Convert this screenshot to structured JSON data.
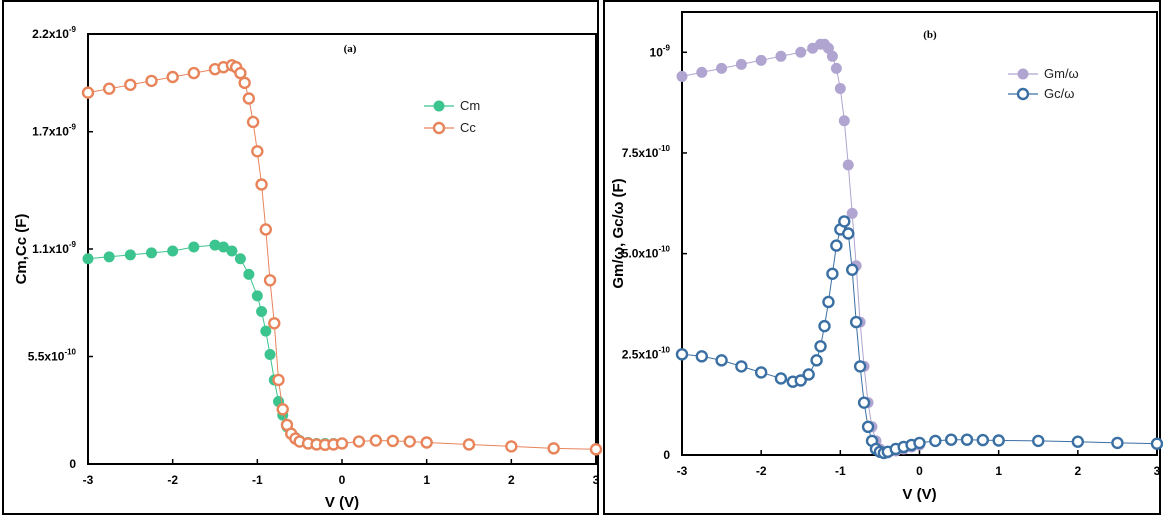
{
  "chart_data": [
    {
      "type": "scatter",
      "panel_label": "(a)",
      "xlabel": "V (V)",
      "ylabel": "Cm,Cc (F)",
      "xlim": [
        -3,
        3
      ],
      "ylim": [
        0,
        2.2e-09
      ],
      "xticks": [
        "-3",
        "-2",
        "-1",
        "0",
        "1",
        "2",
        "3"
      ],
      "xtick_values": [
        -3,
        -2,
        -1,
        0,
        1,
        2,
        3
      ],
      "ytick_values": [
        0,
        5.5e-10,
        1.1e-09,
        1.7e-09,
        2.2e-09
      ],
      "ytick_mantissas": [
        "0",
        "5.5x10",
        "1.1x10",
        "1.7x10",
        "2.2x10"
      ],
      "ytick_exponents": [
        "",
        "-10",
        "-9",
        "-9",
        "-9"
      ],
      "legend_position": "top-right",
      "grid": false,
      "series": [
        {
          "name": "Cm",
          "color": "#3cc48f",
          "marker": "filled-circle",
          "x": [
            -3.0,
            -2.75,
            -2.5,
            -2.25,
            -2.0,
            -1.75,
            -1.5,
            -1.4,
            -1.3,
            -1.2,
            -1.1,
            -1.0,
            -0.95,
            -0.9,
            -0.85,
            -0.8,
            -0.75,
            -0.7,
            -0.65,
            -0.6,
            -0.55,
            -0.5,
            -0.4,
            -0.3,
            -0.2,
            -0.1,
            0.0
          ],
          "y": [
            1.05e-09,
            1.06e-09,
            1.07e-09,
            1.08e-09,
            1.09e-09,
            1.11e-09,
            1.12e-09,
            1.11e-09,
            1.09e-09,
            1.05e-09,
            9.7e-10,
            8.6e-10,
            7.8e-10,
            6.8e-10,
            5.6e-10,
            4.3e-10,
            3.2e-10,
            2.5e-10,
            1.9e-10,
            1.55e-10,
            1.35e-10,
            1.2e-10,
            1.1e-10,
            1.05e-10,
            1.05e-10,
            1.05e-10,
            1.05e-10
          ]
        },
        {
          "name": "Cc",
          "color": "#e8845a",
          "marker": "open-circle",
          "x": [
            -3.0,
            -2.75,
            -2.5,
            -2.25,
            -2.0,
            -1.75,
            -1.5,
            -1.4,
            -1.3,
            -1.25,
            -1.2,
            -1.15,
            -1.1,
            -1.05,
            -1.0,
            -0.95,
            -0.9,
            -0.85,
            -0.8,
            -0.75,
            -0.7,
            -0.65,
            -0.6,
            -0.55,
            -0.5,
            -0.4,
            -0.3,
            -0.2,
            -0.1,
            0.0,
            0.2,
            0.4,
            0.6,
            0.8,
            1.0,
            1.5,
            2.0,
            2.5,
            3.0
          ],
          "y": [
            1.9e-09,
            1.92e-09,
            1.94e-09,
            1.96e-09,
            1.98e-09,
            2e-09,
            2.02e-09,
            2.03e-09,
            2.04e-09,
            2.03e-09,
            2e-09,
            1.95e-09,
            1.87e-09,
            1.75e-09,
            1.6e-09,
            1.43e-09,
            1.2e-09,
            9.4e-10,
            7.2e-10,
            4.3e-10,
            2.8e-10,
            2e-10,
            1.55e-10,
            1.3e-10,
            1.15e-10,
            1.05e-10,
            1e-10,
            9.8e-11,
            1e-10,
            1.05e-10,
            1.15e-10,
            1.2e-10,
            1.18e-10,
            1.15e-10,
            1.1e-10,
            1e-10,
            9e-11,
            8e-11,
            7.5e-11
          ]
        }
      ]
    },
    {
      "type": "scatter",
      "panel_label": "(b)",
      "xlabel": "V (V)",
      "ylabel": "Gm/ω, Gc/ω (F)",
      "xlim": [
        -3,
        3
      ],
      "ylim": [
        0,
        1.1e-09
      ],
      "xticks": [
        "-3",
        "-2",
        "-1",
        "0",
        "1",
        "2",
        "3"
      ],
      "xtick_values": [
        -3,
        -2,
        -1,
        0,
        1,
        2,
        3
      ],
      "ytick_values": [
        0,
        2.5e-10,
        5e-10,
        7.5e-10,
        1e-09
      ],
      "ytick_mantissas": [
        "0",
        "2.5x10",
        "5.0x10",
        "7.5x10",
        "10"
      ],
      "ytick_exponents": [
        "",
        "-10",
        "-10",
        "-10",
        "-9"
      ],
      "legend_position": "top-right",
      "grid": false,
      "series": [
        {
          "name": "Gm/ω",
          "color": "#b0a4d0",
          "marker": "filled-circle",
          "x": [
            -3.0,
            -2.75,
            -2.5,
            -2.25,
            -2.0,
            -1.75,
            -1.5,
            -1.35,
            -1.25,
            -1.2,
            -1.15,
            -1.1,
            -1.05,
            -1.0,
            -0.95,
            -0.9,
            -0.85,
            -0.8,
            -0.75,
            -0.7,
            -0.65,
            -0.6,
            -0.55,
            -0.5,
            -0.45,
            -0.4,
            -0.3,
            -0.2,
            -0.1,
            0.0
          ],
          "y": [
            9.4e-10,
            9.5e-10,
            9.6e-10,
            9.7e-10,
            9.8e-10,
            9.9e-10,
            1e-09,
            1.01e-09,
            1.02e-09,
            1.02e-09,
            1.01e-09,
            9.9e-10,
            9.6e-10,
            9.1e-10,
            8.3e-10,
            7.2e-10,
            6e-10,
            4.7e-10,
            3.3e-10,
            2.2e-10,
            1.3e-10,
            7e-11,
            3.5e-11,
            1.5e-11,
            8e-12,
            5e-12,
            1e-11,
            1.5e-11,
            2e-11,
            2.5e-11
          ]
        },
        {
          "name": "Gc/ω",
          "color": "#3a6fa3",
          "marker": "open-circle",
          "x": [
            -3.0,
            -2.75,
            -2.5,
            -2.25,
            -2.0,
            -1.75,
            -1.6,
            -1.5,
            -1.4,
            -1.3,
            -1.25,
            -1.2,
            -1.15,
            -1.1,
            -1.05,
            -1.0,
            -0.95,
            -0.9,
            -0.85,
            -0.8,
            -0.75,
            -0.7,
            -0.65,
            -0.6,
            -0.55,
            -0.5,
            -0.45,
            -0.4,
            -0.3,
            -0.2,
            -0.1,
            0.0,
            0.2,
            0.4,
            0.6,
            0.8,
            1.0,
            1.5,
            2.0,
            2.5,
            3.0
          ],
          "y": [
            2.5e-10,
            2.45e-10,
            2.35e-10,
            2.2e-10,
            2.05e-10,
            1.9e-10,
            1.82e-10,
            1.85e-10,
            2e-10,
            2.35e-10,
            2.7e-10,
            3.2e-10,
            3.8e-10,
            4.5e-10,
            5.2e-10,
            5.6e-10,
            5.8e-10,
            5.5e-10,
            4.6e-10,
            3.3e-10,
            2.2e-10,
            1.3e-10,
            7e-11,
            3.5e-11,
            1.5e-11,
            8e-12,
            5e-12,
            8e-12,
            1.5e-11,
            2e-11,
            2.5e-11,
            3e-11,
            3.5e-11,
            3.8e-11,
            3.8e-11,
            3.7e-11,
            3.6e-11,
            3.5e-11,
            3.3e-11,
            3e-11,
            2.8e-11
          ]
        }
      ]
    }
  ]
}
